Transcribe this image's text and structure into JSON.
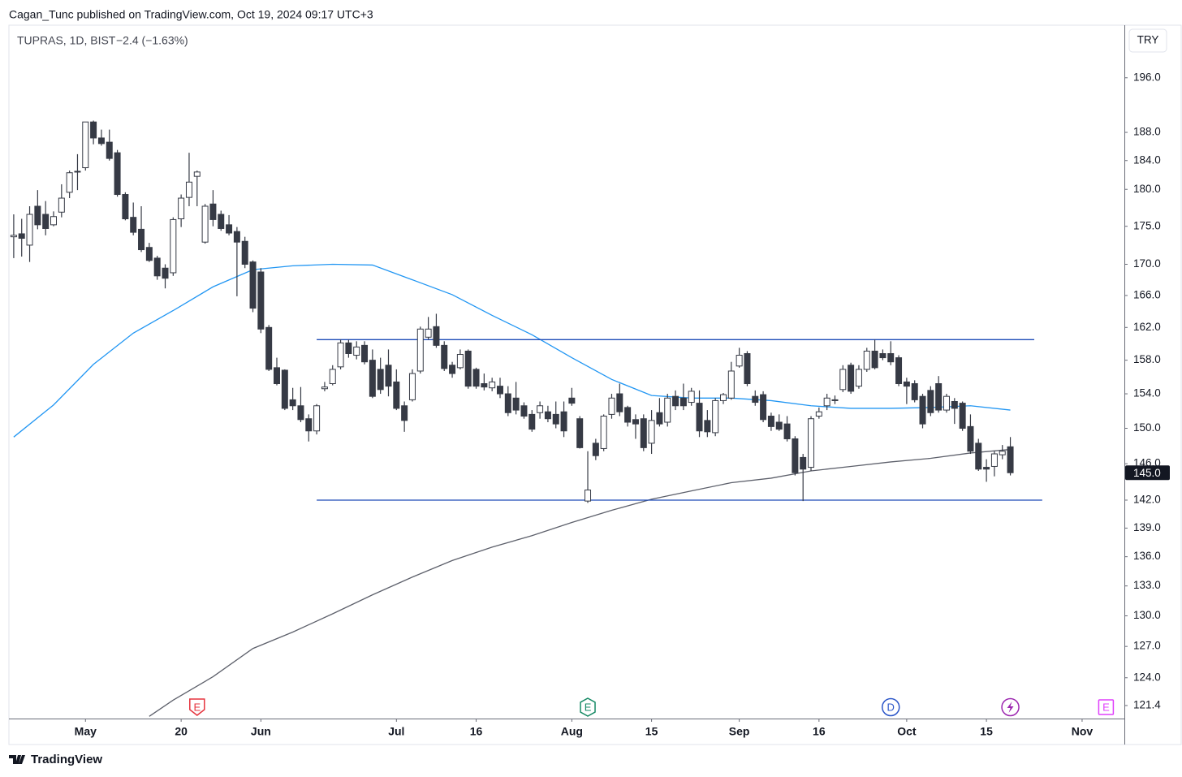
{
  "header": {
    "published": "Cagan_Tunc published on TradingView.com, Oct 19, 2024 09:17 UTC+3"
  },
  "footer": {
    "brand": "TradingView"
  },
  "chart_data": {
    "type": "candlestick",
    "symbol": "TUPRAS, 1D, BIST",
    "change": "−2.4 (−1.63%)",
    "currency": "TRY",
    "log": true,
    "up_color": "#ffffff",
    "down_color": "#363a45",
    "wick_color": "#363a45",
    "xlim": [
      -0.6,
      139.3
    ],
    "ylim": [
      120.2,
      203.9
    ],
    "yticks": [
      {
        "value": 196,
        "label": "196.0"
      },
      {
        "value": 188,
        "label": "188.0"
      },
      {
        "value": 184,
        "label": "184.0"
      },
      {
        "value": 180,
        "label": "180.0"
      },
      {
        "value": 175,
        "label": "175.0"
      },
      {
        "value": 170,
        "label": "170.0"
      },
      {
        "value": 166,
        "label": "166.0"
      },
      {
        "value": 162,
        "label": "162.0"
      },
      {
        "value": 158,
        "label": "158.0"
      },
      {
        "value": 154,
        "label": "154.0"
      },
      {
        "value": 150,
        "label": "150.0"
      },
      {
        "value": 146,
        "label": "146.0"
      },
      {
        "value": 142,
        "label": "142.0"
      },
      {
        "value": 139,
        "label": "139.0"
      },
      {
        "value": 136,
        "label": "136.0"
      },
      {
        "value": 133,
        "label": "133.0"
      },
      {
        "value": 130,
        "label": "130.0"
      },
      {
        "value": 127,
        "label": "127.0"
      },
      {
        "value": 124,
        "label": "124.0"
      },
      121.4
    ],
    "categories": [
      null,
      null,
      null,
      null,
      null,
      null,
      null,
      null,
      null,
      "May",
      null,
      null,
      null,
      null,
      null,
      null,
      null,
      null,
      null,
      null,
      null,
      "20",
      null,
      null,
      null,
      null,
      null,
      null,
      null,
      null,
      null,
      "Jun",
      null,
      null,
      null,
      null,
      null,
      null,
      null,
      null,
      null,
      null,
      null,
      null,
      null,
      null,
      null,
      null,
      "Jul",
      null,
      null,
      null,
      null,
      null,
      null,
      null,
      null,
      null,
      "16",
      null,
      null,
      null,
      null,
      null,
      null,
      null,
      null,
      null,
      null,
      null,
      "Aug",
      null,
      null,
      null,
      null,
      null,
      null,
      null,
      null,
      null,
      "15",
      null,
      null,
      null,
      null,
      null,
      null,
      null,
      null,
      null,
      null,
      "Sep",
      null,
      null,
      null,
      null,
      null,
      null,
      null,
      null,
      null,
      "16",
      null,
      null,
      null,
      null,
      null,
      null,
      null,
      null,
      null,
      null,
      "Oct",
      null,
      null,
      null,
      null,
      null,
      null,
      null,
      null,
      null,
      "15",
      null,
      null,
      null,
      null,
      null,
      null,
      null,
      null,
      null,
      null,
      null,
      "Nov",
      null,
      null,
      null,
      null,
      null
    ],
    "candles": {
      "open": [
        173.6,
        174.0,
        172.5,
        177.7,
        176.6,
        175.2,
        176.9,
        179.6,
        182.4,
        183.0,
        189.5,
        187.2,
        186.6,
        185.1,
        179.3,
        176.2,
        174.6,
        172.2,
        170.8,
        169.5,
        168.9,
        176.0,
        178.9,
        181.8,
        172.9,
        178.0,
        176.6,
        175.2,
        174.3,
        173.0,
        170.3,
        169.0,
        162.0,
        157.1,
        156.8,
        153.3,
        152.6,
        151.1,
        149.7,
        154.6,
        155.2,
        157.2,
        160.1,
        158.6,
        159.8,
        158.0,
        156.9,
        157.4,
        155.4,
        152.6,
        153.3,
        156.7,
        160.8,
        162.1,
        159.8,
        157.4,
        157.1,
        159.1,
        156.9,
        155.2,
        154.7,
        154.9,
        154.0,
        153.5,
        152.6,
        151.6,
        151.8,
        151.9,
        151.6,
        151.9,
        153.5,
        151.1,
        141.9,
        148.3,
        147.7,
        151.6,
        154.0,
        152.4,
        151.0,
        151.1,
        148.3,
        151.8,
        150.7,
        153.7,
        153.5,
        153.0,
        152.9,
        150.9,
        149.5,
        153.2,
        153.5,
        157.3,
        158.8,
        153.7,
        153.9,
        151.4,
        150.7,
        150.5,
        148.8,
        146.7,
        145.6,
        151.4,
        152.6,
        153.3,
        154.5,
        157.4,
        154.9,
        156.9,
        159.1,
        158.8,
        158.8,
        158.3,
        155.4,
        155.2,
        153.7,
        154.4,
        155.2,
        152.1,
        153.1,
        152.9,
        150.2,
        148.3,
        145.6,
        145.7,
        147.0,
        147.9,
        null,
        null,
        null,
        null,
        null,
        null,
        null,
        null,
        null,
        null,
        null,
        null,
        null,
        null
      ],
      "high": [
        176.6,
        176.0,
        177.7,
        179.9,
        178.4,
        177.0,
        180.7,
        182.6,
        184.9,
        189.5,
        189.7,
        188.4,
        188.4,
        185.5,
        179.6,
        178.2,
        177.7,
        172.8,
        171.1,
        170.0,
        176.2,
        179.3,
        185.1,
        182.6,
        178.0,
        179.9,
        177.1,
        176.5,
        174.9,
        173.6,
        170.5,
        169.5,
        162.3,
        158.3,
        156.9,
        154.7,
        154.8,
        151.6,
        152.8,
        155.4,
        157.4,
        160.5,
        160.5,
        160.3,
        160.3,
        159.3,
        158.3,
        159.3,
        156.9,
        153.1,
        156.9,
        162.1,
        163.3,
        163.7,
        160.3,
        157.8,
        159.3,
        159.3,
        157.1,
        156.4,
        155.9,
        155.9,
        154.9,
        155.4,
        153.0,
        152.1,
        153.1,
        152.6,
        153.1,
        153.1,
        154.7,
        151.4,
        147.4,
        148.8,
        151.6,
        154.0,
        155.2,
        152.6,
        151.6,
        151.6,
        152.1,
        153.5,
        154.0,
        154.4,
        155.2,
        154.7,
        154.4,
        152.1,
        153.5,
        154.1,
        157.8,
        159.5,
        159.1,
        154.4,
        154.3,
        151.8,
        151.6,
        151.4,
        149.1,
        147.1,
        151.4,
        152.4,
        154.0,
        153.8,
        157.4,
        157.7,
        157.4,
        159.5,
        160.5,
        159.3,
        160.3,
        158.6,
        155.9,
        155.6,
        154.0,
        154.9,
        156.1,
        154.0,
        153.5,
        153.1,
        151.6,
        148.8,
        146.5,
        147.4,
        148.1,
        149.0,
        null,
        null,
        null,
        null,
        null,
        null,
        null,
        null,
        null,
        null,
        null,
        null,
        null,
        null
      ],
      "low": [
        170.8,
        171.0,
        170.3,
        174.6,
        173.8,
        175.0,
        176.2,
        178.8,
        179.9,
        182.6,
        186.3,
        186.1,
        184.0,
        179.0,
        175.8,
        173.8,
        171.6,
        170.3,
        168.0,
        166.9,
        168.5,
        174.9,
        177.7,
        177.7,
        172.7,
        175.0,
        174.4,
        173.8,
        165.9,
        169.5,
        163.9,
        161.3,
        156.7,
        155.0,
        152.1,
        152.1,
        150.7,
        148.5,
        149.3,
        154.3,
        155.0,
        156.9,
        158.3,
        158.1,
        157.5,
        153.5,
        154.0,
        153.7,
        152.1,
        149.6,
        153.1,
        156.4,
        160.5,
        159.5,
        156.7,
        155.9,
        156.9,
        154.6,
        154.6,
        154.4,
        154.3,
        153.5,
        151.4,
        151.6,
        151.1,
        149.6,
        151.1,
        150.7,
        150.0,
        149.0,
        152.6,
        147.7,
        141.7,
        146.4,
        147.4,
        151.1,
        151.4,
        150.2,
        148.8,
        147.4,
        147.1,
        150.2,
        150.2,
        152.1,
        152.1,
        152.6,
        149.0,
        149.0,
        149.1,
        152.8,
        153.3,
        157.1,
        154.9,
        152.6,
        150.7,
        149.7,
        149.7,
        148.5,
        144.7,
        141.9,
        145.2,
        151.1,
        152.1,
        152.8,
        154.2,
        154.0,
        154.6,
        156.6,
        156.9,
        158.0,
        157.4,
        154.9,
        152.8,
        153.0,
        150.0,
        151.4,
        151.8,
        151.8,
        150.5,
        149.7,
        147.1,
        145.2,
        144.0,
        144.6,
        146.5,
        144.7,
        null,
        null,
        null,
        null,
        null,
        null,
        null,
        null,
        null,
        null,
        null,
        null,
        null,
        null
      ],
      "close": [
        173.8,
        173.4,
        176.6,
        175.2,
        174.7,
        176.3,
        178.8,
        182.3,
        182.5,
        189.5,
        187.2,
        186.4,
        184.3,
        179.3,
        176.0,
        174.2,
        171.9,
        170.5,
        168.5,
        168.2,
        175.9,
        178.8,
        181.0,
        182.4,
        177.7,
        175.9,
        174.7,
        174.1,
        172.9,
        170.0,
        164.4,
        161.8,
        156.9,
        155.2,
        152.3,
        152.6,
        151.0,
        149.7,
        152.6,
        154.8,
        156.9,
        160.1,
        158.8,
        159.6,
        157.8,
        153.7,
        154.5,
        154.9,
        152.3,
        150.9,
        156.4,
        161.8,
        161.8,
        159.8,
        157.0,
        156.4,
        158.7,
        154.9,
        154.9,
        154.8,
        155.4,
        154.0,
        151.8,
        152.1,
        151.4,
        149.9,
        152.6,
        151.1,
        150.5,
        149.7,
        152.9,
        147.8,
        143.1,
        146.9,
        151.4,
        153.5,
        151.9,
        150.7,
        150.5,
        147.8,
        150.9,
        150.5,
        153.5,
        152.6,
        152.6,
        154.3,
        149.7,
        149.6,
        153.2,
        153.9,
        156.7,
        158.6,
        155.2,
        153.0,
        151.0,
        150.2,
        149.9,
        148.8,
        145.0,
        145.4,
        151.1,
        151.9,
        153.5,
        153.2,
        156.9,
        154.3,
        156.9,
        159.1,
        157.1,
        158.3,
        157.8,
        155.2,
        154.9,
        153.3,
        150.5,
        151.8,
        152.1,
        153.7,
        152.3,
        150.0,
        147.4,
        145.4,
        145.4,
        147.1,
        147.4,
        145.0,
        null,
        null,
        null,
        null,
        null,
        null,
        null,
        null,
        null,
        null,
        null,
        null,
        null,
        null
      ]
    },
    "ma": [
      {
        "color": "#2196f3",
        "x": [
          0,
          5,
          10,
          15,
          20,
          25,
          30,
          35,
          40,
          45,
          50,
          55,
          60,
          65,
          70,
          75,
          80,
          85,
          90,
          95,
          100,
          105,
          110,
          115,
          120,
          125
        ],
        "values": [
          149.0,
          152.7,
          157.5,
          161.3,
          164.1,
          167.1,
          169.3,
          169.8,
          170.0,
          169.9,
          168.0,
          166.1,
          163.5,
          161.1,
          158.3,
          155.7,
          153.8,
          153.5,
          153.5,
          153.2,
          152.6,
          152.3,
          152.3,
          152.4,
          152.6,
          152.1
        ]
      },
      {
        "color": "#5d606b",
        "x": [
          17,
          20,
          25,
          30,
          35,
          40,
          45,
          50,
          55,
          60,
          65,
          70,
          75,
          80,
          85,
          90,
          95,
          100,
          105,
          110,
          115,
          120,
          125
        ],
        "values": [
          120.4,
          121.9,
          124.1,
          126.8,
          128.4,
          130.2,
          132.1,
          133.9,
          135.6,
          137.0,
          138.2,
          139.6,
          140.9,
          142.1,
          143.0,
          143.9,
          144.4,
          145.2,
          145.7,
          146.2,
          146.6,
          147.2,
          147.6
        ]
      }
    ],
    "levels": [
      {
        "value": 160.5,
        "x": [
          38,
          128
        ],
        "color": "#1e4bb8"
      },
      {
        "value": 142.0,
        "x": [
          38,
          129
        ],
        "color": "#1e4bb8"
      }
    ],
    "last_price": {
      "value": 145.0,
      "label": "145.0"
    },
    "events": [
      {
        "index": 23,
        "label": "E",
        "color": "#e5333d",
        "shape": "flag"
      },
      {
        "index": 72,
        "label": "E",
        "color": "#168a65",
        "shape": "hexagon"
      },
      {
        "index": 110,
        "label": "D",
        "color": "#2a55c8",
        "shape": "circle"
      },
      {
        "index": 125,
        "color": "#9c27b0",
        "shape": "circle"
      },
      {
        "index": 137,
        "label": "E",
        "color": "#e040fb",
        "shape": "square"
      }
    ]
  }
}
